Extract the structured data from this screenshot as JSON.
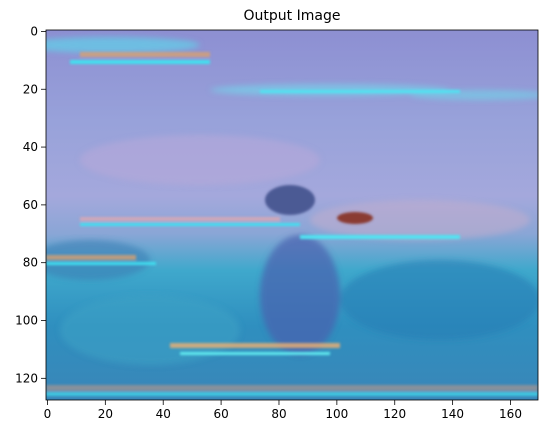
{
  "chart_data": {
    "type": "image",
    "title": "Output Image",
    "xlim": [
      -0.5,
      169.5
    ],
    "ylim": [
      127.5,
      -0.5
    ],
    "xticks": [
      0,
      20,
      40,
      60,
      80,
      100,
      120,
      140,
      160
    ],
    "yticks": [
      0,
      20,
      40,
      60,
      80,
      100,
      120
    ]
  }
}
